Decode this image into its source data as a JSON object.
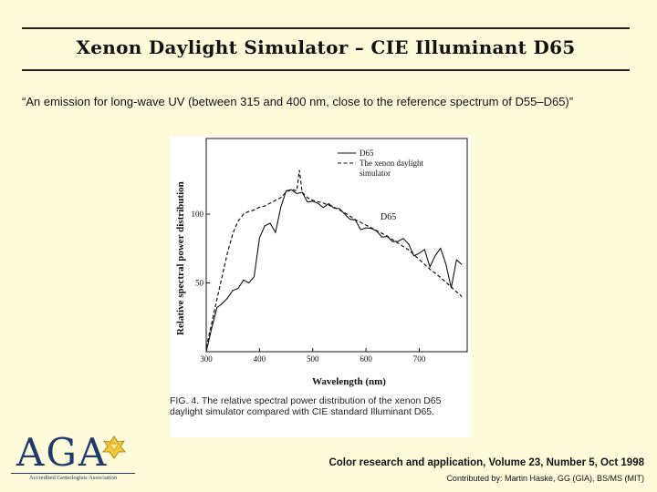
{
  "slide": {
    "title": "Xenon Daylight Simulator – CIE Illuminant D65",
    "quote": "“An emission for long-wave UV (between 315 and 400 nm, close to the reference spectrum of D55–D65)”",
    "citation": "Color research and application, Volume 23, Number 5, Oct 1998",
    "contributor": "Contributed by: Martin Haske, GG (GIA), BS/MS (MIT)"
  },
  "logo": {
    "text": "AGA",
    "subtitle": "Accredited Gemologists Association",
    "icon": "gem-icon"
  },
  "figure": {
    "caption": "FIG. 4.    The relative spectral power distribution of the xenon D65 daylight simulator compared with CIE standard Illuminant D65.",
    "annotation": "D65"
  },
  "chart_data": {
    "type": "line",
    "xlabel": "Wavelength (nm)",
    "ylabel": "Relative spectral power distribution",
    "xticks": [
      300,
      400,
      500,
      600,
      700
    ],
    "yticks": [
      50,
      100
    ],
    "xlim": [
      300,
      790
    ],
    "ylim": [
      0,
      155
    ],
    "legend_position": "top-right",
    "series": [
      {
        "name": "D65",
        "style": "solid",
        "x": [
          300,
          310,
          320,
          330,
          340,
          350,
          360,
          370,
          380,
          390,
          400,
          410,
          420,
          430,
          440,
          450,
          460,
          470,
          480,
          490,
          500,
          510,
          520,
          530,
          540,
          550,
          560,
          570,
          580,
          590,
          600,
          610,
          620,
          630,
          640,
          650,
          660,
          670,
          680,
          690,
          700,
          710,
          720,
          730,
          740,
          750,
          760,
          770,
          780
        ],
        "y": [
          0.03,
          16.6,
          32.0,
          35.0,
          39.0,
          44.6,
          46.0,
          52.1,
          50.0,
          54.6,
          82.8,
          91.5,
          93.4,
          86.7,
          104.9,
          117.0,
          117.8,
          114.9,
          115.9,
          108.8,
          109.4,
          107.8,
          104.8,
          107.7,
          104.4,
          104.0,
          100.0,
          96.3,
          95.8,
          88.7,
          90.0,
          89.6,
          87.7,
          83.3,
          83.7,
          80.0,
          80.2,
          82.3,
          78.3,
          69.7,
          71.6,
          74.3,
          61.6,
          69.9,
          75.1,
          63.6,
          46.4,
          66.8,
          63.4
        ]
      },
      {
        "name": "The xenon daylight simulator",
        "style": "dashed",
        "x": [
          300,
          310,
          320,
          330,
          340,
          350,
          360,
          370,
          380,
          390,
          400,
          410,
          420,
          430,
          440,
          450,
          460,
          470,
          475,
          480,
          490,
          500,
          520,
          540,
          560,
          580,
          600,
          620,
          640,
          660,
          680,
          700,
          720,
          740,
          760,
          780
        ],
        "y": [
          3,
          20,
          38,
          55,
          72,
          86,
          95,
          100,
          102,
          103,
          105,
          106,
          108,
          110,
          112,
          116,
          118,
          117,
          132,
          116,
          112,
          110,
          108,
          105,
          101,
          96,
          92,
          88,
          84,
          79,
          74,
          67,
          60,
          54,
          47,
          40
        ]
      }
    ]
  }
}
